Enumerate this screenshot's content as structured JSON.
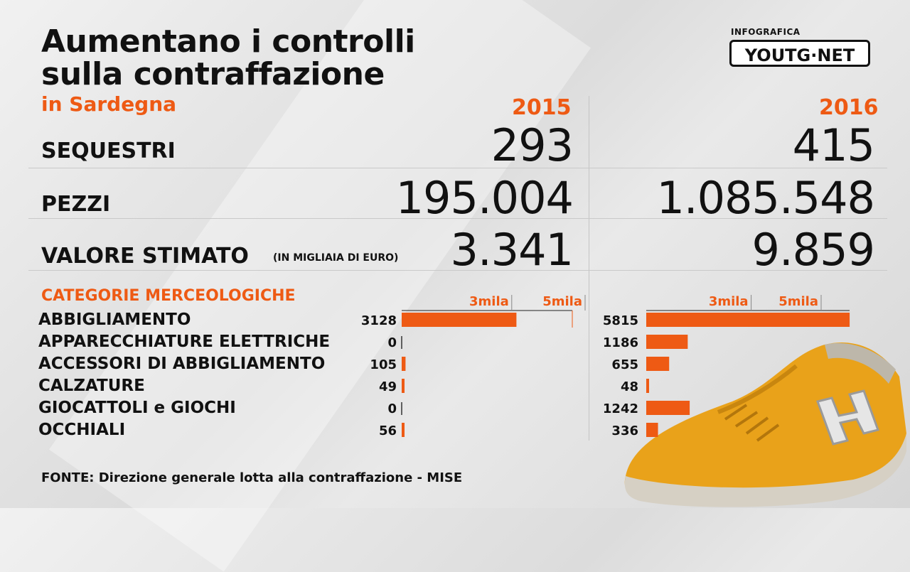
{
  "title_line1": "Aumentano i controlli",
  "title_line2": "sulla contraffazione",
  "subtitle": "in Sardegna",
  "logo": {
    "small": "INFOGRAFICA",
    "main": "YOUTG·NET"
  },
  "years": [
    "2015",
    "2016"
  ],
  "metrics": [
    {
      "label": "SEQUESTRI",
      "note": "",
      "v2015": "293",
      "v2016": "415"
    },
    {
      "label": "PEZZI",
      "note": "",
      "v2015": "195.004",
      "v2016": "1.085.548"
    },
    {
      "label": "VALORE STIMATO",
      "note": "(IN MIGLIAIA  DI EURO)",
      "v2015": "3.341",
      "v2016": "9.859"
    }
  ],
  "categories_heading": "CATEGORIE MERCEOLOGICHE",
  "source": "FONTE: Direzione generale lotta alla contraffazione - MISE",
  "colors": {
    "accent": "#ee5a14",
    "text": "#111111"
  },
  "chart_data": [
    {
      "type": "bar",
      "orientation": "horizontal",
      "title": "2015",
      "categories": [
        "ABBIGLIAMENTO",
        "APPARECCHIATURE ELETTRICHE",
        "ACCESSORI DI ABBIGLIAMENTO",
        "CALZATURE",
        "GIOCATTOLI e GIOCHI",
        "OCCHIALI"
      ],
      "values": [
        3128,
        0,
        105,
        49,
        0,
        56
      ],
      "tick_labels": [
        "3mila",
        "5mila"
      ],
      "ticks": [
        3000,
        5000
      ]
    },
    {
      "type": "bar",
      "orientation": "horizontal",
      "title": "2016",
      "categories": [
        "ABBIGLIAMENTO",
        "APPARECCHIATURE ELETTRICHE",
        "ACCESSORI DI ABBIGLIAMENTO",
        "CALZATURE",
        "GIOCATTOLI e GIOCHI",
        "OCCHIALI"
      ],
      "values": [
        5815,
        1186,
        655,
        48,
        1242,
        336
      ],
      "tick_labels": [
        "3mila",
        "5mila"
      ],
      "ticks": [
        3000,
        5000
      ]
    }
  ]
}
